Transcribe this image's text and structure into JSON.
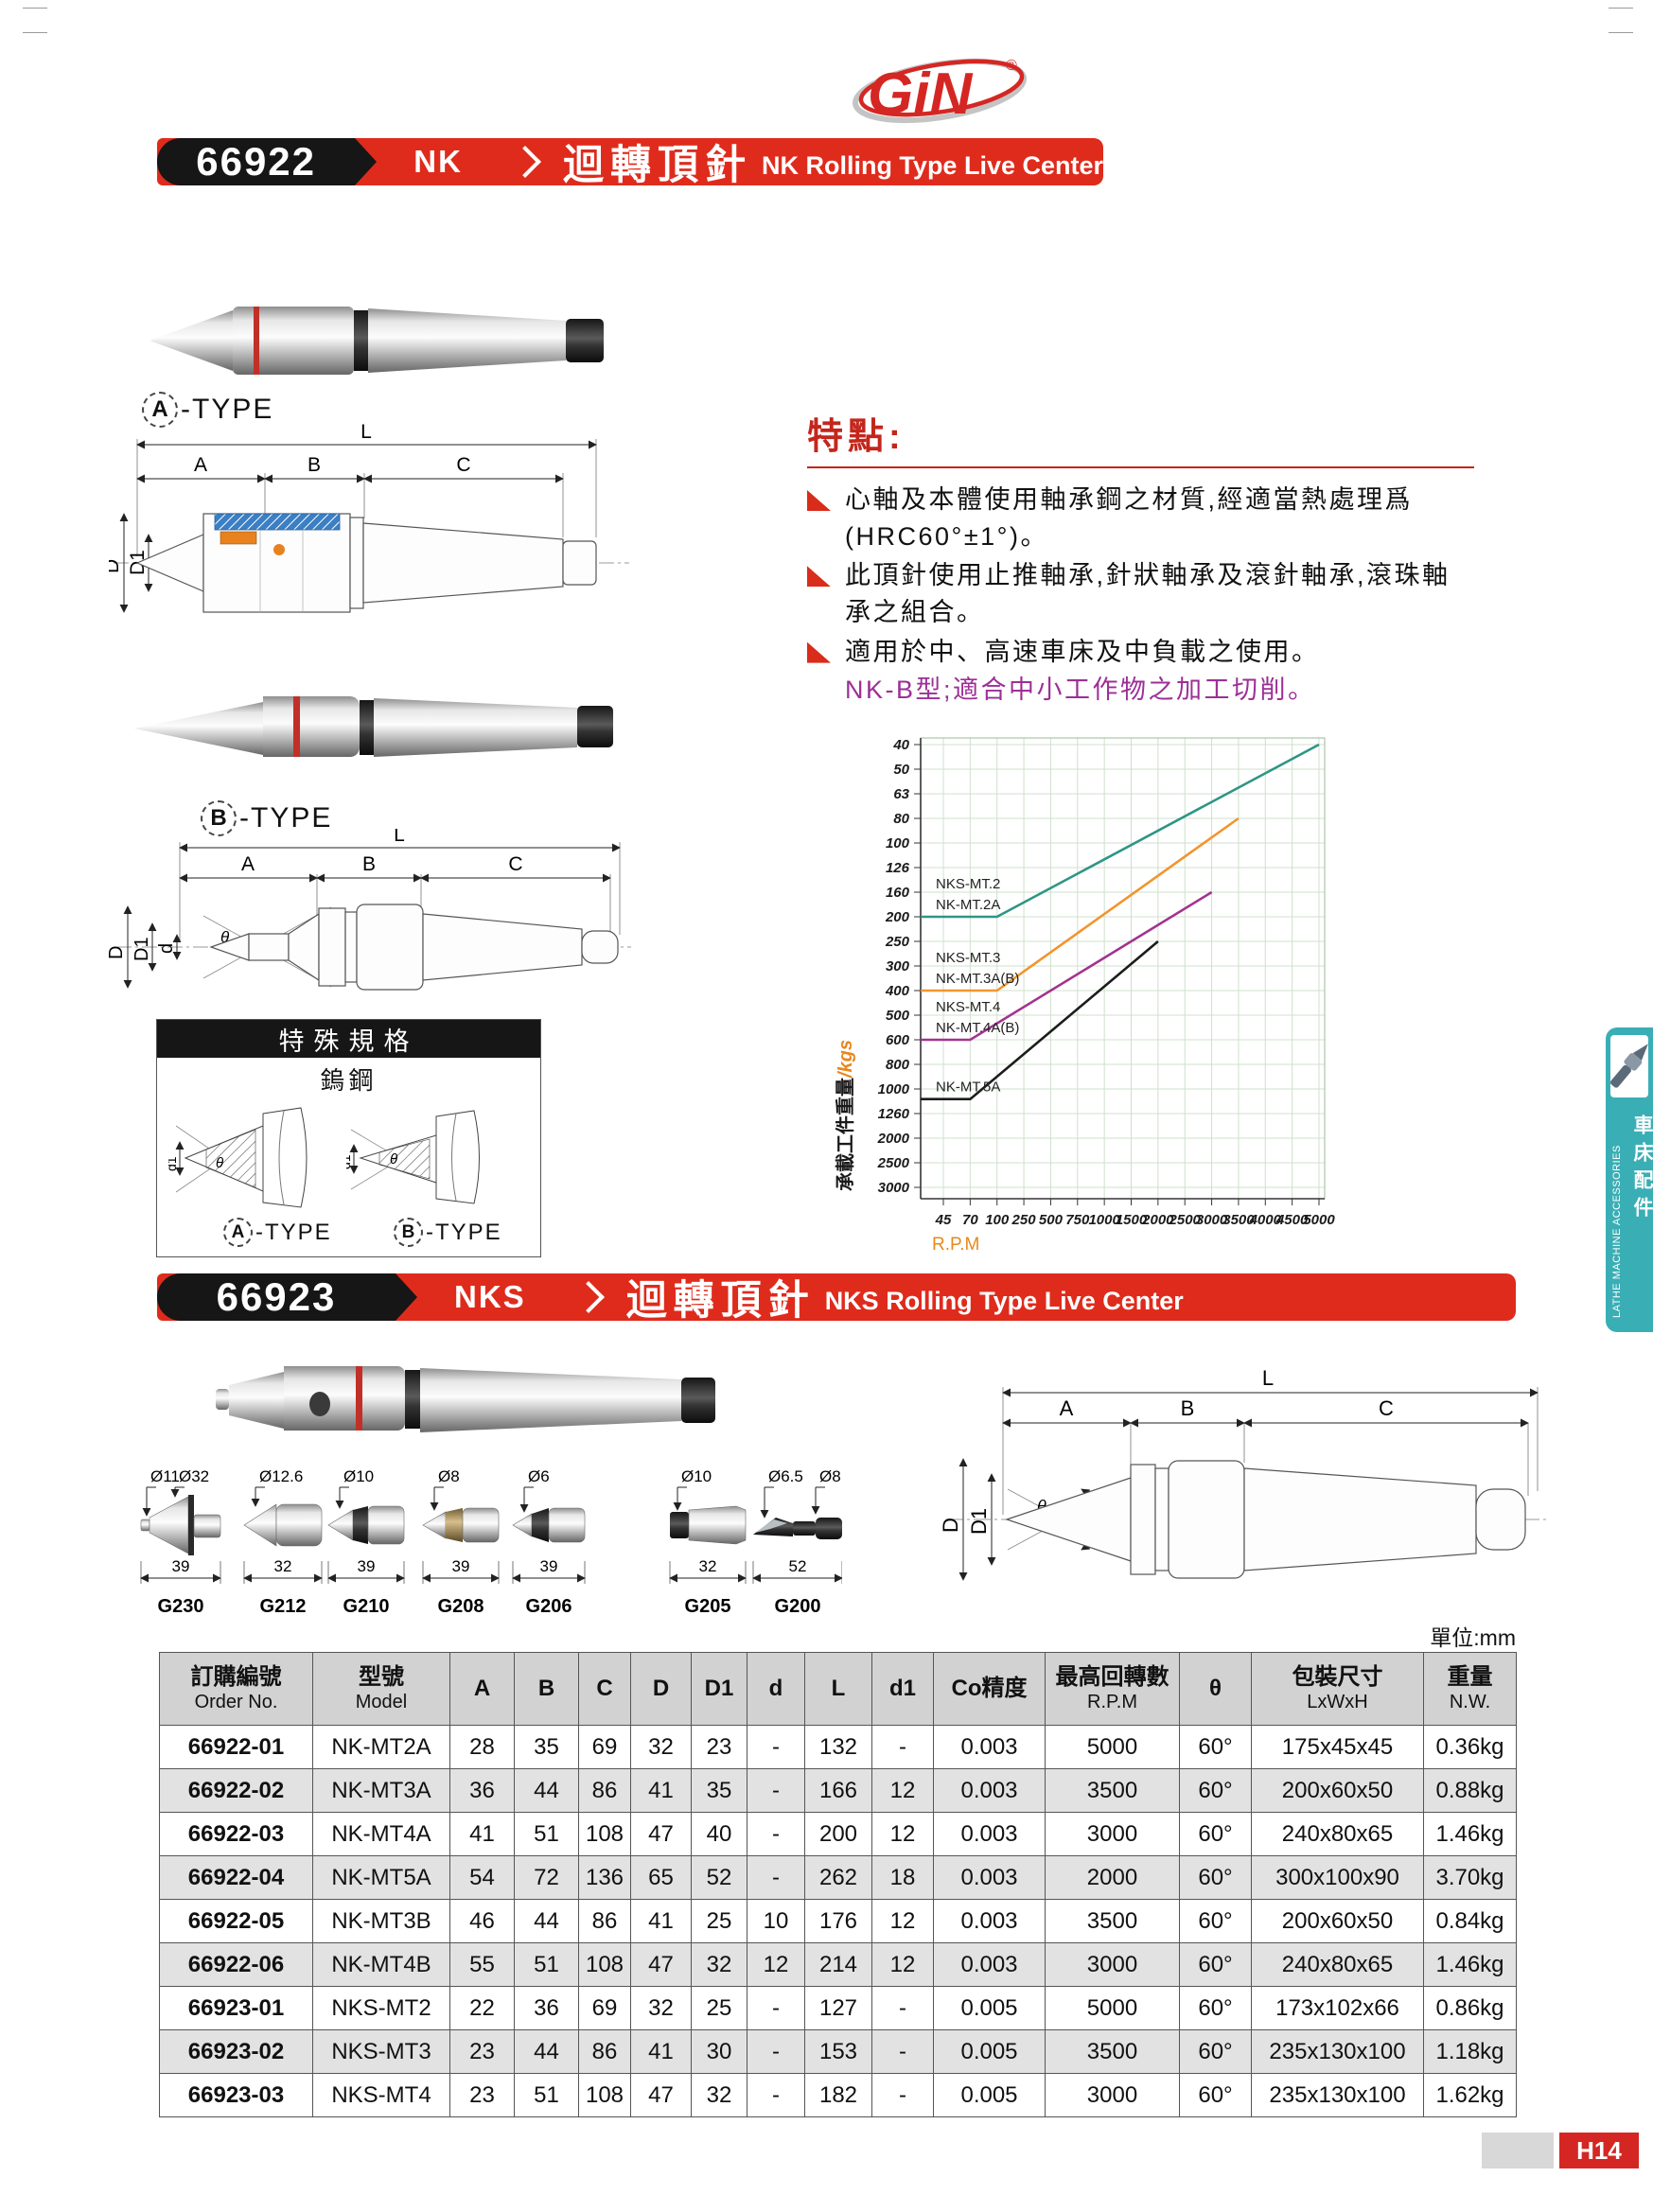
{
  "page": {
    "unit": "單位:mm",
    "page_no": "H14"
  },
  "logo": {
    "text": "GiN",
    "reg": "®"
  },
  "side_tab": {
    "en": "LATHE MACHINE ACCESSORIES",
    "zh": "車床配件"
  },
  "banner1": {
    "code": "66922",
    "series": "NK",
    "title_zh": "迴轉頂針",
    "title_en": "NK Rolling Type Live Center"
  },
  "banner2": {
    "code": "66923",
    "series": "NKS",
    "title_zh": "迴轉頂針",
    "title_en": "NKS Rolling Type Live Center"
  },
  "type_labels": {
    "a": "A",
    "b": "B",
    "suffix": "-TYPE"
  },
  "labels": {
    "L": "L",
    "A": "A",
    "B": "B",
    "C": "C",
    "D": "D",
    "D1": "D1",
    "d": "d",
    "d1": "d1",
    "theta": "θ"
  },
  "features": {
    "heading": "特點:",
    "items": [
      "心軸及本體使用軸承鋼之材質,經適當熱處理爲(HRC60°±1°)。",
      "此頂針使用止推軸承,針狀軸承及滾針軸承,滾珠軸承之組合。",
      "適用於中、高速車床及中負載之使用。"
    ],
    "note": "NK-B型;適合中小工作物之加工切削。"
  },
  "special": {
    "header": "特殊規格",
    "material": "鎢鋼"
  },
  "chart_data": {
    "type": "line",
    "title": "",
    "xlabel": "R.P.M",
    "ylabel": "承載工件重量/kgs",
    "ylabel_zh": "承載工件重量",
    "ylabel_unit": "/kgs",
    "x_ticks": [
      45,
      70,
      100,
      250,
      500,
      750,
      1000,
      1500,
      2000,
      2500,
      3000,
      3500,
      4000,
      4500,
      5000
    ],
    "y_ticks": [
      40,
      50,
      63,
      80,
      100,
      126,
      160,
      200,
      250,
      300,
      400,
      500,
      600,
      800,
      1000,
      1260,
      2000,
      2500,
      3000
    ],
    "y_inverted": true,
    "grid": true,
    "legend_position": "inline-left",
    "series": [
      {
        "name": "NKS-MT.2 / NK-MT.2A",
        "label_lines": [
          "NKS-MT.2",
          "NK-MT.2A"
        ],
        "color": "#2e9585",
        "points": [
          [
            45,
            200
          ],
          [
            100,
            200
          ],
          [
            5000,
            40
          ]
        ]
      },
      {
        "name": "NKS-MT.3 / NK-MT.3A(B)",
        "label_lines": [
          "NKS-MT.3",
          "NK-MT.3A(B)"
        ],
        "color": "#f2952e",
        "points": [
          [
            45,
            400
          ],
          [
            100,
            400
          ],
          [
            3500,
            80
          ]
        ]
      },
      {
        "name": "NKS-MT.4 / NK-MT.4A(B)",
        "label_lines": [
          "NKS-MT.4",
          "NK-MT.4A(B)"
        ],
        "color": "#a23390",
        "points": [
          [
            45,
            600
          ],
          [
            70,
            600
          ],
          [
            3000,
            160
          ]
        ]
      },
      {
        "name": "NK-MT.5A",
        "label_lines": [
          "NK-MT.5A"
        ],
        "color": "#1c1c1c",
        "points": [
          [
            45,
            1100
          ],
          [
            70,
            1100
          ],
          [
            2000,
            250
          ]
        ]
      }
    ]
  },
  "tips": [
    {
      "model": "G230",
      "dias": [
        "Ø11",
        "Ø32"
      ],
      "len": "39"
    },
    {
      "model": "G212",
      "dias": [
        "Ø12.6"
      ],
      "len": "32"
    },
    {
      "model": "G210",
      "dias": [
        "Ø10"
      ],
      "len": "39"
    },
    {
      "model": "G208",
      "dias": [
        "Ø8"
      ],
      "len": "39"
    },
    {
      "model": "G206",
      "dias": [
        "Ø6"
      ],
      "len": "39"
    },
    {
      "model": "G205",
      "dias": [
        "Ø10"
      ],
      "len": "32"
    },
    {
      "model": "G200",
      "dias": [
        "Ø6.5",
        "Ø8"
      ],
      "len": "52"
    }
  ],
  "table": {
    "headers": [
      {
        "l1": "訂購編號",
        "l2": "Order No."
      },
      {
        "l1": "型號",
        "l2": "Model"
      },
      {
        "l1": "A"
      },
      {
        "l1": "B"
      },
      {
        "l1": "C"
      },
      {
        "l1": "D"
      },
      {
        "l1": "D1"
      },
      {
        "l1": "d"
      },
      {
        "l1": "L"
      },
      {
        "l1": "d1"
      },
      {
        "l1": "Co精度"
      },
      {
        "l1": "最高回轉數",
        "l2": "R.P.M"
      },
      {
        "l1": "θ"
      },
      {
        "l1": "包裝尺寸",
        "l2": "LxWxH"
      },
      {
        "l1": "重量",
        "l2": "N.W."
      }
    ],
    "rows": [
      [
        "66922-01",
        "NK-MT2A",
        "28",
        "35",
        "69",
        "32",
        "23",
        "-",
        "132",
        "-",
        "0.003",
        "5000",
        "60°",
        "175x45x45",
        "0.36kg"
      ],
      [
        "66922-02",
        "NK-MT3A",
        "36",
        "44",
        "86",
        "41",
        "35",
        "-",
        "166",
        "12",
        "0.003",
        "3500",
        "60°",
        "200x60x50",
        "0.88kg"
      ],
      [
        "66922-03",
        "NK-MT4A",
        "41",
        "51",
        "108",
        "47",
        "40",
        "-",
        "200",
        "12",
        "0.003",
        "3000",
        "60°",
        "240x80x65",
        "1.46kg"
      ],
      [
        "66922-04",
        "NK-MT5A",
        "54",
        "72",
        "136",
        "65",
        "52",
        "-",
        "262",
        "18",
        "0.003",
        "2000",
        "60°",
        "300x100x90",
        "3.70kg"
      ],
      [
        "66922-05",
        "NK-MT3B",
        "46",
        "44",
        "86",
        "41",
        "25",
        "10",
        "176",
        "12",
        "0.003",
        "3500",
        "60°",
        "200x60x50",
        "0.84kg"
      ],
      [
        "66922-06",
        "NK-MT4B",
        "55",
        "51",
        "108",
        "47",
        "32",
        "12",
        "214",
        "12",
        "0.003",
        "3000",
        "60°",
        "240x80x65",
        "1.46kg"
      ],
      [
        "66923-01",
        "NKS-MT2",
        "22",
        "36",
        "69",
        "32",
        "25",
        "-",
        "127",
        "-",
        "0.005",
        "5000",
        "60°",
        "173x102x66",
        "0.86kg"
      ],
      [
        "66923-02",
        "NKS-MT3",
        "23",
        "44",
        "86",
        "41",
        "30",
        "-",
        "153",
        "-",
        "0.005",
        "3500",
        "60°",
        "235x130x100",
        "1.18kg"
      ],
      [
        "66923-03",
        "NKS-MT4",
        "23",
        "51",
        "108",
        "47",
        "32",
        "-",
        "182",
        "-",
        "0.005",
        "3000",
        "60°",
        "235x130x100",
        "1.62kg"
      ]
    ]
  }
}
